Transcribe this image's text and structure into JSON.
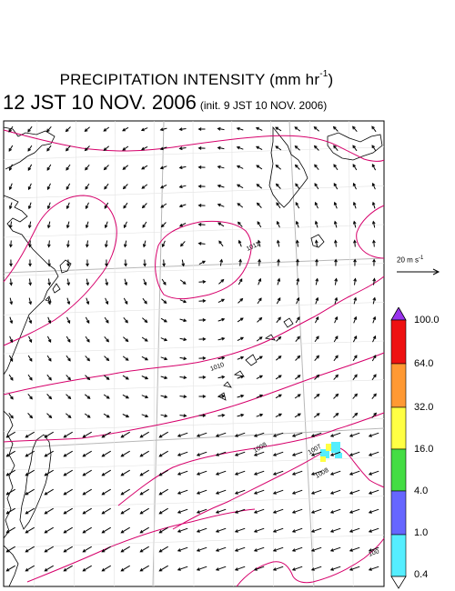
{
  "title": {
    "main_prefix": "PRECIPITATION INTENSITY (mm hr",
    "main_sup": "-1",
    "main_suffix": ")",
    "valid_time": "12 JST 10 NOV. 2006",
    "init_time": "(init. 9 JST 10 NOV. 2006)"
  },
  "reference_vector": {
    "prefix": "20 m s",
    "sup": "-1",
    "value": 20
  },
  "isobars": {
    "labels": [
      "1011",
      "1010",
      "1008",
      "1007",
      "1008",
      "100"
    ],
    "color": "#d6006b"
  },
  "color_scale": {
    "levels": [
      "100.0",
      "64.0",
      "32.0",
      "16.0",
      "4.0",
      "1.0",
      "0.4"
    ],
    "colors": [
      "#9933ee",
      "#ee1111",
      "#ff9933",
      "#ffff44",
      "#44dd44",
      "#6666ff",
      "#55eeff",
      "#ffffff"
    ]
  },
  "map_colors": {
    "coast": "#000000",
    "grid": "#b8b8b8",
    "precip_yellow": "#ffff44",
    "precip_cyan": "#55eeff"
  }
}
